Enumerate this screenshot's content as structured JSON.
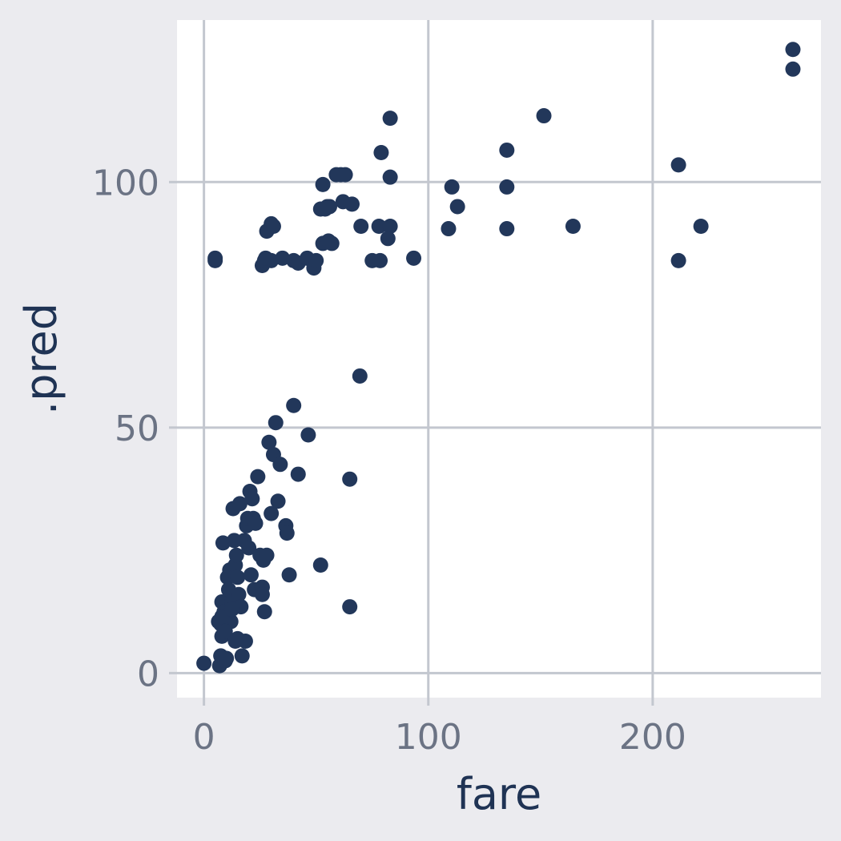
{
  "chart_data": {
    "type": "scatter",
    "title": "",
    "xlabel": "fare",
    "ylabel": ".pred",
    "xlim": [
      -12,
      275
    ],
    "ylim": [
      -5,
      133
    ],
    "grid": true,
    "legend": "none",
    "x_ticks": [
      0,
      100,
      200
    ],
    "y_ticks": [
      0,
      50,
      100
    ],
    "colors": {
      "background": "#ebebef",
      "panel": "#ffffff",
      "grid": "#c3c7cf",
      "point": "#22375a",
      "tick_label": "#6b7384",
      "axis_title": "#1f3354"
    },
    "x": [
      0,
      5.0,
      6.5,
      7.0,
      7.5,
      8.0,
      8.0,
      8.5,
      9.0,
      9.5,
      10.0,
      10.5,
      11.0,
      11.0,
      11.5,
      12.0,
      12.5,
      13.0,
      13.5,
      14.0,
      14.5,
      15.0,
      15.5,
      15.0,
      16.0,
      16.5,
      17.0,
      18.0,
      18.5,
      19.0,
      19.5,
      20.0,
      20.5,
      21.0,
      21.5,
      22.0,
      22.5,
      23.0,
      24.0,
      25.0,
      26.0,
      26.5,
      27.0,
      28.0,
      29.0,
      30.0,
      31.0,
      32.0,
      33.0,
      34.0,
      36.5,
      37.0,
      38.0,
      40.0,
      42.0,
      46.5,
      7.5,
      8.0,
      9.5,
      12.5,
      14.0,
      26.0,
      52.0,
      65.0,
      65.0,
      69.5,
      5.0,
      26.0,
      27.0,
      28.0,
      30.0,
      27.5,
      30.0,
      31.0,
      35.0,
      40.0,
      42.0,
      46.0,
      49.0,
      50.0,
      53.0,
      55.5,
      55.0,
      57.0,
      53.0,
      54.0,
      56.0,
      61.0,
      63.0,
      66.0,
      52.0,
      59.0,
      62.0,
      70.0,
      75.0,
      78.0,
      79.0,
      83.0,
      82.0,
      93.5,
      78.5,
      83.0,
      83.0,
      109.0,
      110.5,
      113.0,
      135.0,
      135.0,
      135.0,
      151.5,
      164.5,
      211.5,
      211.5,
      221.5,
      262.5,
      262.5
    ],
    "y": [
      2,
      84,
      10.5,
      1.5,
      3.5,
      14.5,
      7.5,
      26.5,
      12.5,
      2.5,
      3,
      19.5,
      11,
      17,
      21,
      10.5,
      14.5,
      33.5,
      27,
      22,
      24,
      7,
      16,
      19.5,
      34.5,
      13.5,
      3.5,
      27,
      6.5,
      30,
      31.5,
      25.5,
      37,
      20,
      35.5,
      31.5,
      17,
      30.5,
      40,
      24,
      17.5,
      23,
      12.5,
      24,
      47,
      32.5,
      44.5,
      51,
      35,
      42.5,
      30,
      28.5,
      20,
      54.5,
      40.5,
      48.5,
      10,
      11.5,
      8.5,
      13,
      6.5,
      16,
      22,
      39.5,
      13.5,
      60.5,
      84.5,
      83,
      84,
      90,
      84,
      84.5,
      91.5,
      91,
      84.5,
      84,
      83.5,
      84.5,
      82.5,
      84,
      87.5,
      88,
      95,
      87.5,
      99.5,
      94.5,
      95,
      101.5,
      101.5,
      95.5,
      94.5,
      101.5,
      96,
      91,
      84,
      91,
      106,
      91,
      88.5,
      84.5,
      84,
      101,
      113,
      90.5,
      99,
      95,
      106.5,
      99,
      90.5,
      113.5,
      91,
      103.5,
      84,
      91,
      127,
      123
    ]
  }
}
